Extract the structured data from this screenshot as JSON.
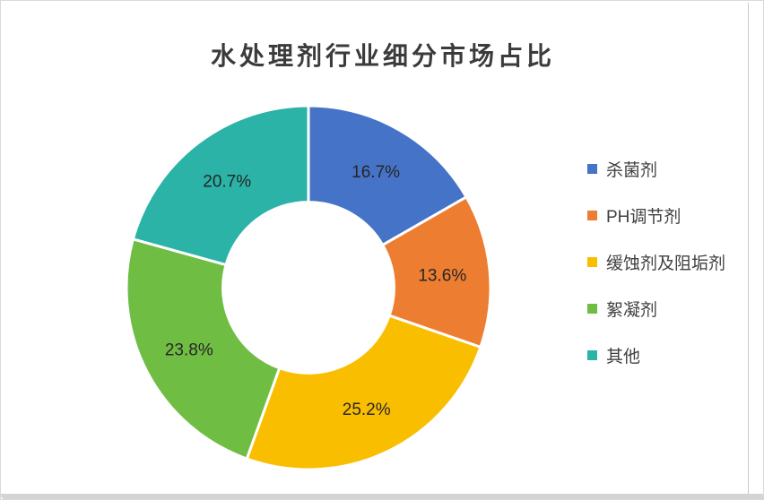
{
  "frame": {
    "background": "#ffffff",
    "border_color": "#d9d9d9",
    "bottom_bar_color": "#d2d5d7"
  },
  "chart_data": {
    "type": "pie",
    "subtype": "donut",
    "title": "水处理剂行业细分市场占比",
    "title_color": "#3b3b3b",
    "start_angle_deg": 0,
    "direction": "clockwise",
    "donut_hole_ratio": 0.47,
    "slice_gap_color": "#ffffff",
    "label_color": "#262626",
    "legend_position": "right",
    "legend_text_color": "#404040",
    "series": [
      {
        "name": "杀菌剂",
        "value": 16.7,
        "label": "16.7%",
        "color": "#4573C7"
      },
      {
        "name": "PH调节剂",
        "value": 13.6,
        "label": "13.6%",
        "color": "#ED7D31"
      },
      {
        "name": "缓蚀剂及阻垢剂",
        "value": 25.2,
        "label": "25.2%",
        "color": "#F9BE00"
      },
      {
        "name": "絮凝剂",
        "value": 23.8,
        "label": "23.8%",
        "color": "#70BD44"
      },
      {
        "name": "其他",
        "value": 20.7,
        "label": "20.7%",
        "color": "#2BB3A8"
      }
    ]
  }
}
